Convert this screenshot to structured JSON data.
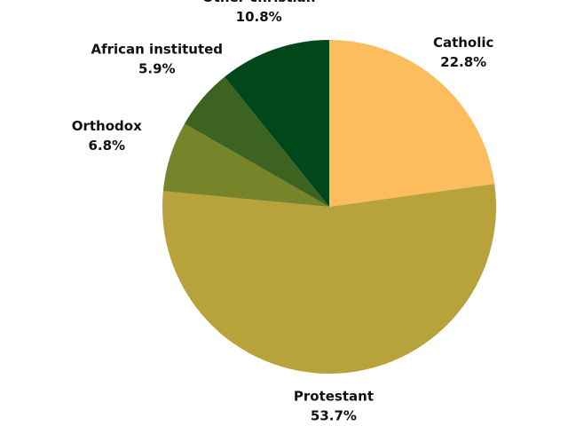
{
  "chart_data": {
    "type": "pie",
    "categories": [
      "Catholic",
      "Protestant",
      "Orthodox",
      "African instituted",
      "Other christian"
    ],
    "values": [
      22.8,
      53.7,
      6.8,
      5.9,
      10.8
    ],
    "value_labels": [
      "22.8%",
      "53.7%",
      "6.8%",
      "5.9%",
      "10.8%"
    ],
    "colors": [
      "#fdbd5f",
      "#b8a23b",
      "#768529",
      "#3d6321",
      "#00471a"
    ]
  }
}
